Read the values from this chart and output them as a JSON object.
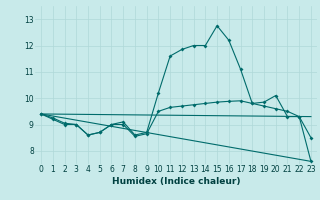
{
  "xlabel": "Humidex (Indice chaleur)",
  "background_color": "#c8eaea",
  "grid_color": "#afd8d8",
  "line_color": "#006b6b",
  "xlim": [
    -0.5,
    23.5
  ],
  "ylim": [
    7.5,
    13.5
  ],
  "xticks": [
    0,
    1,
    2,
    3,
    4,
    5,
    6,
    7,
    8,
    9,
    10,
    11,
    12,
    13,
    14,
    15,
    16,
    17,
    18,
    19,
    20,
    21,
    22,
    23
  ],
  "yticks": [
    8,
    9,
    10,
    11,
    12,
    13
  ],
  "series": [
    {
      "x": [
        0,
        1,
        2,
        3,
        4,
        5,
        6,
        7,
        8,
        9,
        10,
        11,
        12,
        13,
        14,
        15,
        16,
        17,
        18,
        19,
        20,
        21,
        22,
        23
      ],
      "y": [
        9.4,
        9.2,
        9.0,
        9.0,
        8.6,
        8.7,
        9.0,
        9.1,
        8.6,
        8.7,
        10.2,
        11.6,
        11.85,
        12.0,
        12.0,
        12.75,
        12.2,
        11.1,
        9.8,
        9.85,
        10.1,
        9.3,
        9.3,
        7.6
      ],
      "marker": true
    },
    {
      "x": [
        0,
        1,
        2,
        3,
        4,
        5,
        6,
        7,
        8,
        9,
        10,
        11,
        12,
        13,
        14,
        15,
        16,
        17,
        18,
        19,
        20,
        21,
        22,
        23
      ],
      "y": [
        9.4,
        9.25,
        9.05,
        9.0,
        8.6,
        8.7,
        9.0,
        9.0,
        8.55,
        8.65,
        9.5,
        9.65,
        9.7,
        9.75,
        9.8,
        9.85,
        9.88,
        9.9,
        9.8,
        9.7,
        9.6,
        9.5,
        9.3,
        8.5
      ],
      "marker": true
    },
    {
      "x": [
        0,
        23
      ],
      "y": [
        9.4,
        9.3
      ],
      "marker": false
    },
    {
      "x": [
        0,
        23
      ],
      "y": [
        9.4,
        7.6
      ],
      "marker": false
    }
  ],
  "tick_fontsize": 5.5,
  "xlabel_fontsize": 6.5,
  "marker_size": 2.0,
  "linewidth": 0.8
}
